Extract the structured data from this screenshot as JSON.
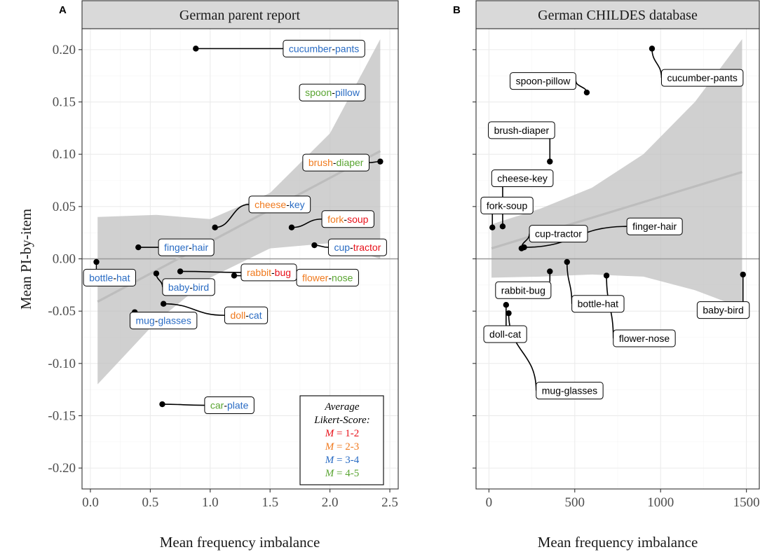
{
  "colors": {
    "likert_1_2": "#e8111a",
    "likert_2_3": "#f07a1e",
    "likert_3_4": "#2a6cc4",
    "likert_4_5": "#5aa532",
    "ribbon": "#c0c0c0",
    "trend": "#bdbdbd",
    "zero_line": "#9a9a9a"
  },
  "shared_axes": {
    "ylabel": "Mean PI-by-item",
    "xlabel": "Mean frequency imbalance",
    "ylim": [
      -0.22,
      0.22
    ],
    "yticks": [
      0.2,
      0.15,
      0.1,
      0.05,
      0.0,
      -0.05,
      -0.1,
      -0.15,
      -0.2
    ],
    "ytick_labels": [
      "0.20",
      "0.15",
      "0.10",
      "0.05",
      "0.00",
      "-0.05",
      "-0.10",
      "-0.15",
      "-0.20"
    ]
  },
  "legend": {
    "title_line1": "Average",
    "title_line2": "Likert-Score:",
    "entries": [
      {
        "m": "M",
        "range": " = 1-2",
        "color_key": "likert_1_2"
      },
      {
        "m": "M",
        "range": " = 2-3",
        "color_key": "likert_2_3"
      },
      {
        "m": "M",
        "range": " = 3-4",
        "color_key": "likert_3_4"
      },
      {
        "m": "M",
        "range": " = 4-5",
        "color_key": "likert_4_5"
      }
    ]
  },
  "chart_data": [
    {
      "type": "scatter",
      "panel_tag": "A",
      "title": "German parent report",
      "xlabel": "Mean frequency imbalance",
      "ylabel": "Mean PI-by-item",
      "xlim": [
        -0.07,
        2.57
      ],
      "ylim": [
        -0.22,
        0.22
      ],
      "xticks": [
        0.0,
        0.5,
        1.0,
        1.5,
        2.0,
        2.5
      ],
      "xtick_labels": [
        "0.0",
        "0.5",
        "1.0",
        "1.5",
        "2.0",
        "2.5"
      ],
      "trend": {
        "x": [
          0.06,
          2.42
        ],
        "y": [
          -0.041,
          0.103
        ]
      },
      "ribbon": {
        "x": [
          0.06,
          0.55,
          1.0,
          1.5,
          2.0,
          2.42
        ],
        "upper": [
          0.04,
          0.042,
          0.038,
          0.063,
          0.12,
          0.21
        ],
        "lower": [
          -0.12,
          -0.06,
          -0.018,
          0.01,
          0.015,
          0.0
        ]
      },
      "points": [
        {
          "w1": "cucumber",
          "sep": "-",
          "w2": "pants",
          "c1": "likert_3_4",
          "c2": "likert_3_4",
          "x": 0.88,
          "y": 0.201,
          "lx": 1.95,
          "ly": 0.201
        },
        {
          "w1": "spoon",
          "sep": "-",
          "w2": "pillow",
          "c1": "likert_4_5",
          "c2": "likert_3_4",
          "x": 1.82,
          "y": 0.159,
          "lx": 2.02,
          "ly": 0.159
        },
        {
          "w1": "brush",
          "sep": "-",
          "w2": "diaper",
          "c1": "likert_2_3",
          "c2": "likert_4_5",
          "x": 2.42,
          "y": 0.093,
          "lx": 2.05,
          "ly": 0.092
        },
        {
          "w1": "cheese",
          "sep": "-",
          "w2": "key",
          "c1": "likert_2_3",
          "c2": "likert_3_4",
          "x": 1.04,
          "y": 0.03,
          "lx": 1.58,
          "ly": 0.052
        },
        {
          "w1": "fork",
          "sep": "-",
          "w2": "soup",
          "c1": "likert_2_3",
          "c2": "likert_1_2",
          "x": 1.68,
          "y": 0.03,
          "lx": 2.15,
          "ly": 0.038
        },
        {
          "w1": "finger",
          "sep": "-",
          "w2": "hair",
          "c1": "likert_3_4",
          "c2": "likert_3_4",
          "x": 0.4,
          "y": 0.011,
          "lx": 0.8,
          "ly": 0.011
        },
        {
          "w1": "cup",
          "sep": "-",
          "w2": "tractor",
          "c1": "likert_3_4",
          "c2": "likert_1_2",
          "x": 1.87,
          "y": 0.013,
          "lx": 2.23,
          "ly": 0.011
        },
        {
          "w1": "bottle",
          "sep": "-",
          "w2": "hat",
          "c1": "likert_3_4",
          "c2": "likert_3_4",
          "x": 0.05,
          "y": -0.003,
          "lx": 0.16,
          "ly": -0.018
        },
        {
          "w1": "baby",
          "sep": "-",
          "w2": "bird",
          "c1": "likert_3_4",
          "c2": "likert_3_4",
          "x": 0.55,
          "y": -0.014,
          "lx": 0.82,
          "ly": -0.027
        },
        {
          "w1": "rabbit",
          "sep": "-",
          "w2": "bug",
          "c1": "likert_2_3",
          "c2": "likert_1_2",
          "x": 0.75,
          "y": -0.012,
          "lx": 1.49,
          "ly": -0.013
        },
        {
          "w1": "flower",
          "sep": "-",
          "w2": "nose",
          "c1": "likert_2_3",
          "c2": "likert_4_5",
          "x": 1.2,
          "y": -0.016,
          "lx": 1.98,
          "ly": -0.018
        },
        {
          "w1": "doll",
          "sep": "-",
          "w2": "cat",
          "c1": "likert_2_3",
          "c2": "likert_3_4",
          "x": 0.61,
          "y": -0.043,
          "lx": 1.3,
          "ly": -0.054
        },
        {
          "w1": "mug",
          "sep": "-",
          "w2": "glasses",
          "c1": "likert_3_4",
          "c2": "likert_3_4",
          "x": 0.37,
          "y": -0.051,
          "lx": 0.61,
          "ly": -0.059
        },
        {
          "w1": "car",
          "sep": "-",
          "w2": "plate",
          "c1": "likert_4_5",
          "c2": "likert_3_4",
          "x": 0.6,
          "y": -0.139,
          "lx": 1.16,
          "ly": -0.14
        }
      ]
    },
    {
      "type": "scatter",
      "panel_tag": "B",
      "title": "German CHILDES database",
      "xlabel": "Mean frequency imbalance",
      "ylabel": "Mean PI-by-item",
      "xlim": [
        -75,
        1575
      ],
      "ylim": [
        -0.22,
        0.22
      ],
      "xticks": [
        0,
        500,
        1000,
        1500
      ],
      "xtick_labels": [
        "0",
        "500",
        "1000",
        "1500"
      ],
      "trend": {
        "x": [
          15,
          1475
        ],
        "y": [
          0.01,
          0.083
        ]
      },
      "ribbon": {
        "x": [
          15,
          300,
          600,
          900,
          1200,
          1475
        ],
        "upper": [
          0.033,
          0.048,
          0.068,
          0.1,
          0.15,
          0.21
        ],
        "lower": [
          -0.018,
          -0.017,
          -0.015,
          -0.017,
          -0.03,
          -0.047
        ]
      },
      "points": [
        {
          "w1": "cucumber",
          "sep": "-",
          "w2": "pants",
          "c1": "",
          "c2": "",
          "x": 950,
          "y": 0.201,
          "lx": 1243,
          "ly": 0.173
        },
        {
          "w1": "spoon",
          "sep": "-",
          "w2": "pillow",
          "c1": "",
          "c2": "",
          "x": 570,
          "y": 0.159,
          "lx": 315,
          "ly": 0.17
        },
        {
          "w1": "brush",
          "sep": "-",
          "w2": "diaper",
          "c1": "",
          "c2": "",
          "x": 355,
          "y": 0.093,
          "lx": 190,
          "ly": 0.123
        },
        {
          "w1": "cheese",
          "sep": "-",
          "w2": "key",
          "c1": "",
          "c2": "",
          "x": 80,
          "y": 0.031,
          "lx": 195,
          "ly": 0.077
        },
        {
          "w1": "fork",
          "sep": "-",
          "w2": "soup",
          "c1": "",
          "c2": "",
          "x": 20,
          "y": 0.03,
          "lx": 105,
          "ly": 0.051
        },
        {
          "w1": "cup",
          "sep": "-",
          "w2": "tractor",
          "c1": "",
          "c2": "",
          "x": 190,
          "y": 0.01,
          "lx": 405,
          "ly": 0.024
        },
        {
          "w1": "finger",
          "sep": "-",
          "w2": "hair",
          "c1": "",
          "c2": "",
          "x": 205,
          "y": 0.011,
          "lx": 965,
          "ly": 0.031
        },
        {
          "w1": "rabbit",
          "sep": "-",
          "w2": "bug",
          "c1": "",
          "c2": "",
          "x": 355,
          "y": -0.012,
          "lx": 200,
          "ly": -0.03
        },
        {
          "w1": "bottle",
          "sep": "-",
          "w2": "hat",
          "c1": "",
          "c2": "",
          "x": 455,
          "y": -0.003,
          "lx": 635,
          "ly": -0.043
        },
        {
          "w1": "flower",
          "sep": "-",
          "w2": "nose",
          "c1": "",
          "c2": "",
          "x": 685,
          "y": -0.016,
          "lx": 905,
          "ly": -0.076
        },
        {
          "w1": "baby",
          "sep": "-",
          "w2": "bird",
          "c1": "",
          "c2": "",
          "x": 1480,
          "y": -0.015,
          "lx": 1365,
          "ly": -0.049
        },
        {
          "w1": "doll",
          "sep": "-",
          "w2": "cat",
          "c1": "",
          "c2": "",
          "x": 100,
          "y": -0.044,
          "lx": 95,
          "ly": -0.072
        },
        {
          "w1": "mug",
          "sep": "-",
          "w2": "glasses",
          "c1": "",
          "c2": "",
          "x": 115,
          "y": -0.052,
          "lx": 470,
          "ly": -0.126
        }
      ]
    }
  ]
}
